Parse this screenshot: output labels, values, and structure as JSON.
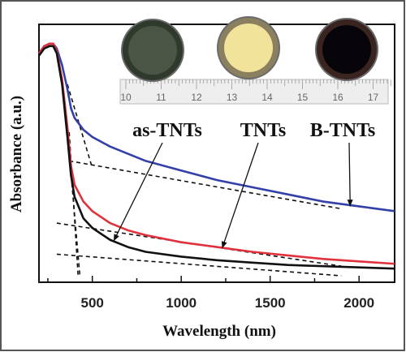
{
  "chart_data": {
    "type": "line",
    "xlabel": "Wavelength (nm)",
    "ylabel": "Absorbance (a.u.)",
    "xlim": [
      200,
      2200
    ],
    "x_ticks": [
      500,
      1000,
      1500,
      2000
    ],
    "y_ticks_labeled": false,
    "grid": false,
    "legend": "none",
    "series": [
      {
        "key": "b_tnts",
        "color": "#3340a8",
        "x": [
          200,
          230,
          260,
          280,
          300,
          330,
          360,
          380,
          400,
          450,
          500,
          600,
          700,
          800,
          1000,
          1200,
          1400,
          1600,
          1800,
          2000,
          2200
        ],
        "y": [
          0.93,
          0.96,
          0.97,
          0.97,
          0.95,
          0.88,
          0.78,
          0.7,
          0.66,
          0.61,
          0.58,
          0.54,
          0.51,
          0.48,
          0.44,
          0.4,
          0.37,
          0.34,
          0.31,
          0.29,
          0.27
        ]
      },
      {
        "key": "tnts",
        "color": "#e0323c",
        "x": [
          200,
          230,
          260,
          280,
          300,
          330,
          360,
          380,
          400,
          450,
          500,
          600,
          700,
          800,
          1000,
          1200,
          1400,
          1600,
          1800,
          2000,
          2200
        ],
        "y": [
          0.93,
          0.96,
          0.97,
          0.97,
          0.94,
          0.82,
          0.62,
          0.46,
          0.38,
          0.31,
          0.27,
          0.22,
          0.19,
          0.17,
          0.14,
          0.12,
          0.1,
          0.085,
          0.07,
          0.06,
          0.05
        ]
      },
      {
        "key": "as_tnts",
        "color": "#111111",
        "x": [
          200,
          230,
          260,
          280,
          300,
          330,
          360,
          380,
          400,
          450,
          500,
          600,
          700,
          800,
          1000,
          1200,
          1400,
          1600,
          1800,
          2000,
          2200
        ],
        "y": [
          0.92,
          0.95,
          0.96,
          0.96,
          0.93,
          0.8,
          0.58,
          0.42,
          0.33,
          0.24,
          0.2,
          0.15,
          0.12,
          0.1,
          0.08,
          0.065,
          0.055,
          0.045,
          0.04,
          0.035,
          0.03
        ]
      }
    ],
    "tangent_lines": [
      {
        "x": [
          360,
          500
        ],
        "y": [
          0.8,
          0.45
        ]
      },
      {
        "x": [
          370,
          1900
        ],
        "y": [
          0.48,
          0.28
        ]
      },
      {
        "x": [
          360,
          430
        ],
        "y": [
          0.6,
          0.0
        ]
      },
      {
        "x": [
          370,
          420
        ],
        "y": [
          0.6,
          0.0
        ]
      },
      {
        "x": [
          300,
          1900
        ],
        "y": [
          0.22,
          0.04
        ]
      },
      {
        "x": [
          300,
          1900
        ],
        "y": [
          0.09,
          0.0
        ]
      }
    ],
    "annotations": [
      {
        "text": "as-TNTs",
        "arrow_to": [
          620,
          0.145
        ]
      },
      {
        "text": "TNTs",
        "arrow_to": [
          1230,
          0.115
        ]
      },
      {
        "text": "B-TNTs",
        "arrow_to": [
          1950,
          0.29
        ]
      }
    ]
  },
  "inset": {
    "samples": [
      {
        "key": "as_tnts",
        "disc_color": "#2f3a2c",
        "inner_color": "#4a5545"
      },
      {
        "key": "tnts",
        "disc_color": "#8a8060",
        "inner_color": "#f2e39a"
      },
      {
        "key": "b_tnts",
        "disc_color": "#3a2420",
        "inner_color": "#07050a"
      }
    ],
    "ruler_labels": [
      "10",
      "11",
      "12",
      "13",
      "14",
      "15",
      "16",
      "17"
    ]
  }
}
